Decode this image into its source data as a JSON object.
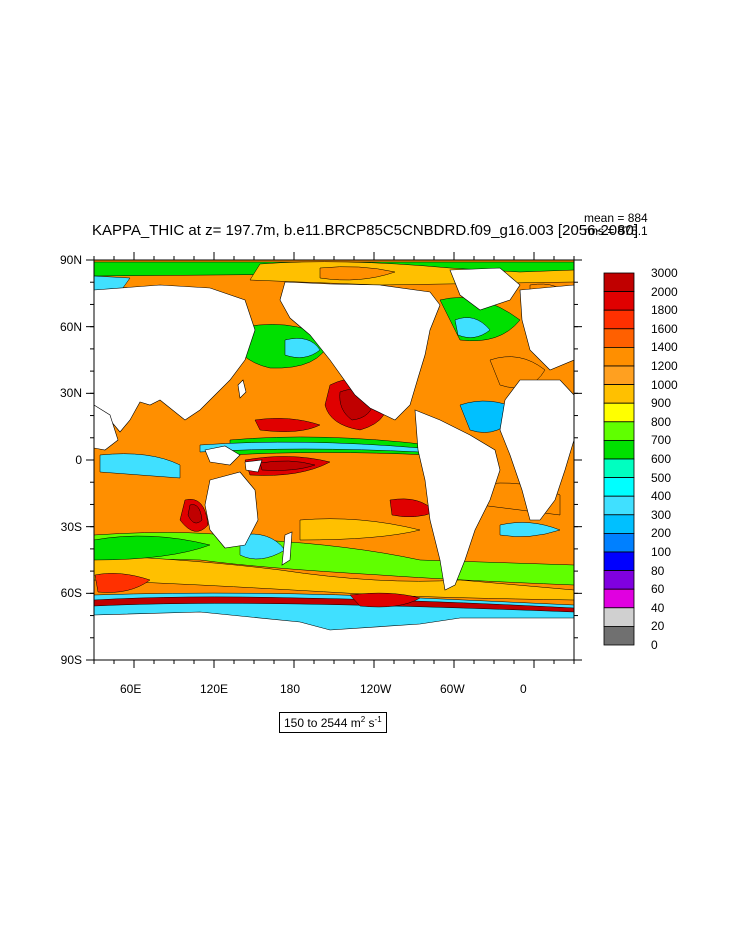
{
  "chart_data": {
    "type": "heatmap",
    "title": "KAPPA_THIC at z= 197.7m, b.e11.BRCP85C5CNBDRD.f09_g16.003 [2056-2080]",
    "stats": {
      "mean": "mean = 884",
      "rms": "rms = 975.1"
    },
    "range_label": {
      "text": "150 to 2544 m",
      "sup1": "2",
      "mid": " s",
      "sup2": "-1"
    },
    "x_ticks": [
      "60E",
      "120E",
      "180",
      "120W",
      "60W",
      "0"
    ],
    "y_ticks": [
      "90N",
      "60N",
      "30N",
      "0",
      "30S",
      "60S",
      "90S"
    ],
    "xlim": [
      30,
      390
    ],
    "ylim": [
      -90,
      90
    ],
    "contour_levels": [
      "3000",
      "2000",
      "1800",
      "1600",
      "1400",
      "1200",
      "1000",
      "900",
      "800",
      "700",
      "600",
      "500",
      "400",
      "300",
      "200",
      "100",
      "80",
      "60",
      "40",
      "20",
      "0"
    ],
    "colors": [
      "#c00000",
      "#e00000",
      "#ff3000",
      "#ff6000",
      "#ff8f00",
      "#ffa020",
      "#ffc000",
      "#ffff00",
      "#60ff00",
      "#00e000",
      "#00ffc0",
      "#00ffff",
      "#40e0ff",
      "#00c0ff",
      "#0080ff",
      "#0000ff",
      "#8000e0",
      "#e000e0",
      "#d0d0d0",
      "#707070"
    ],
    "land_color": "#ffffff"
  }
}
